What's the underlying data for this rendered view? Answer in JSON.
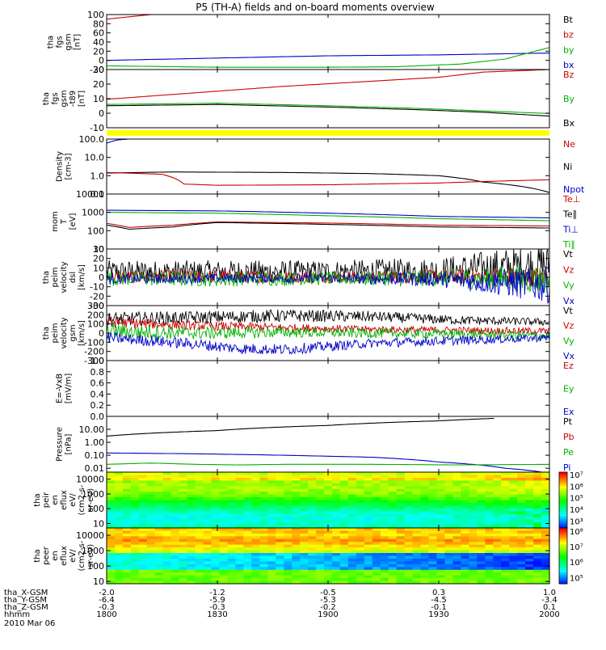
{
  "chart_data": {
    "type": "line",
    "title": "P5 (TH-A) fields and on-board moments overview",
    "date_label": "2010 Mar 06",
    "x_time_ticks": [
      "1800",
      "1830",
      "1900",
      "1930",
      "2000"
    ],
    "x_time_range": [
      18.0,
      20.0
    ],
    "orbit_rows": [
      {
        "label": "tha_X-GSM",
        "values": [
          "-2.0",
          "-1.2",
          "-0.5",
          "0.3",
          "1.0"
        ]
      },
      {
        "label": "tha_Y-GSM",
        "values": [
          "-6.4",
          "-5.9",
          "-5.3",
          "-4.5",
          "-3.4"
        ]
      },
      {
        "label": "tha_Z-GSM",
        "values": [
          "-0.3",
          "-0.3",
          "-0.2",
          "-0.1",
          "0.1"
        ]
      },
      {
        "label": "hhmm",
        "values": []
      }
    ],
    "panels": [
      {
        "ylabel": [
          "tha",
          "fgs",
          "gsm",
          "[nT]"
        ],
        "scale": "linear",
        "ylim": [
          -20,
          100
        ],
        "ticks": [
          "100",
          "80",
          "60",
          "40",
          "20",
          "0",
          "-20"
        ],
        "legend": [
          {
            "text": "Bt",
            "color": "#000000"
          },
          {
            "text": "bz",
            "color": "#cc0000"
          },
          {
            "text": "by",
            "color": "#00b000"
          },
          {
            "text": "bx",
            "color": "#0000cc"
          }
        ],
        "series": [
          {
            "color": "#cc0000",
            "x": [
              18.0,
              18.1,
              18.2,
              18.3
            ],
            "y": [
              90,
              95,
              100,
              104
            ]
          },
          {
            "color": "#0000cc",
            "x": [
              18.0,
              18.5,
              19.0,
              19.5,
              20.0
            ],
            "y": [
              0,
              5,
              10,
              12,
              16
            ]
          },
          {
            "color": "#00b000",
            "x": [
              18.0,
              18.5,
              19.0,
              19.3,
              19.6,
              19.8,
              20.0
            ],
            "y": [
              -12,
              -15,
              -15,
              -14,
              -8,
              3,
              28
            ]
          }
        ]
      },
      {
        "ylabel": [
          "tha",
          "fgs",
          "gsm",
          "-t89",
          "[nT]"
        ],
        "scale": "linear",
        "ylim": [
          -15,
          30
        ],
        "ticks": [
          "30",
          "20",
          "10",
          "0",
          "-10"
        ],
        "legend": [
          {
            "text": "Bz",
            "color": "#cc0000"
          },
          {
            "text": "By",
            "color": "#00b000"
          },
          {
            "text": "Bx",
            "color": "#000000"
          }
        ],
        "series": [
          {
            "color": "#cc0000",
            "x": [
              18.0,
              18.4,
              18.8,
              19.2,
              19.5,
              19.7,
              20.0
            ],
            "y": [
              7,
              12,
              17,
              21,
              24,
              28,
              30
            ]
          },
          {
            "color": "#000000",
            "x": [
              18.0,
              18.5,
              19.0,
              19.4,
              19.7,
              20.0
            ],
            "y": [
              2,
              3,
              1,
              -1,
              -3,
              -6
            ]
          },
          {
            "color": "#00b000",
            "x": [
              18.0,
              18.5,
              19.0,
              19.4,
              19.7,
              20.0
            ],
            "y": [
              3,
              4,
              2,
              0,
              -2,
              -4
            ]
          }
        ]
      },
      {
        "ylabel": [
          "Density",
          "[cm-3]"
        ],
        "scale": "log",
        "ylim": [
          0.1,
          100
        ],
        "ticks": [
          "100.0",
          "10.0",
          "1.0",
          "0.1"
        ],
        "legend": [
          {
            "text": "Ne",
            "color": "#cc0000"
          },
          {
            "text": "Ni",
            "color": "#000000"
          },
          {
            "text": "Npot",
            "color": "#0000cc"
          }
        ],
        "series": [
          {
            "color": "#000000",
            "x": [
              18.0,
              18.3,
              18.8,
              19.2,
              19.5,
              19.7,
              20.0
            ],
            "y": [
              1.4,
              1.6,
              1.5,
              1.3,
              1.0,
              0.45,
              0.12
            ]
          },
          {
            "color": "#cc0000",
            "x": [
              18.0,
              18.25,
              18.35,
              18.5,
              19.0,
              19.5,
              20.0
            ],
            "y": [
              1.5,
              1.2,
              0.35,
              0.3,
              0.32,
              0.4,
              0.6
            ]
          },
          {
            "color": "#0000cc",
            "x": [
              18.0,
              18.05,
              18.1,
              18.15
            ],
            "y": [
              60,
              90,
              100,
              110
            ]
          }
        ]
      },
      {
        "ylabel": [
          "mom",
          "T",
          "[eV]"
        ],
        "scale": "log",
        "ylim": [
          10,
          10000
        ],
        "ticks": [
          "10000",
          "1000",
          "100",
          "10"
        ],
        "legend": [
          {
            "text": "Te⊥",
            "color": "#cc0000"
          },
          {
            "text": "Te∥",
            "color": "#000000"
          },
          {
            "text": "Ti⊥",
            "color": "#0000cc"
          },
          {
            "text": "Ti∥",
            "color": "#00b000"
          }
        ],
        "series": [
          {
            "color": "#0000cc",
            "x": [
              18.0,
              18.5,
              19.0,
              19.5,
              20.0
            ],
            "y": [
              1300,
              1200,
              900,
              600,
              500
            ]
          },
          {
            "color": "#00b000",
            "x": [
              18.0,
              18.5,
              19.0,
              19.5,
              20.0
            ],
            "y": [
              1000,
              900,
              650,
              450,
              350
            ]
          },
          {
            "color": "#cc0000",
            "x": [
              18.0,
              18.1,
              18.3,
              18.5,
              19.0,
              19.5,
              20.0
            ],
            "y": [
              250,
              150,
              200,
              300,
              260,
              200,
              180
            ]
          },
          {
            "color": "#000000",
            "x": [
              18.0,
              18.1,
              18.3,
              18.5,
              19.0,
              19.5,
              20.0
            ],
            "y": [
              200,
              120,
              160,
              280,
              220,
              160,
              140
            ]
          }
        ]
      },
      {
        "ylabel": [
          "tha",
          "peim",
          "velocity",
          "dsl",
          "[km/s]"
        ],
        "scale": "linear",
        "ylim": [
          -30,
          30
        ],
        "ticks": [
          "30",
          "20",
          "10",
          "0",
          "-10",
          "-20",
          "-30"
        ],
        "legend": [
          {
            "text": "Vt",
            "color": "#000000"
          },
          {
            "text": "Vz",
            "color": "#cc0000"
          },
          {
            "text": "Vy",
            "color": "#00b000"
          },
          {
            "text": "Vx",
            "color": "#0000cc"
          }
        ],
        "series": [
          {
            "color": "#000000",
            "x": [
              18.0,
              18.5,
              19.0,
              19.5,
              20.0
            ],
            "y": [
              6,
              6,
              6,
              7,
              14
            ],
            "noise": [
              12,
              12,
              12,
              14,
              24
            ]
          },
          {
            "color": "#cc0000",
            "x": [
              18.0,
              18.5,
              19.0,
              19.5,
              20.0
            ],
            "y": [
              0,
              1,
              0,
              1,
              0
            ],
            "noise": [
              7,
              7,
              6,
              7,
              12
            ]
          },
          {
            "color": "#00b000",
            "x": [
              18.0,
              18.5,
              19.0,
              19.5,
              20.0
            ],
            "y": [
              -1,
              -2,
              -1,
              -1,
              -2
            ],
            "noise": [
              8,
              8,
              7,
              9,
              16
            ]
          },
          {
            "color": "#0000cc",
            "x": [
              18.0,
              18.5,
              19.0,
              19.5,
              20.0
            ],
            "y": [
              -2,
              -1,
              -1,
              -2,
              -8
            ],
            "noise": [
              5,
              5,
              5,
              8,
              20
            ]
          }
        ]
      },
      {
        "ylabel": [
          "tha",
          "peim",
          "velocity",
          "gsm",
          "[km/s]"
        ],
        "scale": "linear",
        "ylim": [
          -300,
          300
        ],
        "ticks": [
          "300",
          "200",
          "100",
          "0",
          "-100",
          "-200",
          "-300"
        ],
        "legend": [
          {
            "text": "Vt",
            "color": "#000000"
          },
          {
            "text": "Vz",
            "color": "#cc0000"
          },
          {
            "text": "Vy",
            "color": "#00b000"
          },
          {
            "text": "Vx",
            "color": "#0000cc"
          }
        ],
        "series": [
          {
            "color": "#000000",
            "x": [
              18.0,
              18.4,
              18.8,
              19.2,
              19.6,
              20.0
            ],
            "y": [
              150,
              170,
              190,
              180,
              140,
              120
            ],
            "noise": [
              80,
              70,
              70,
              60,
              50,
              40
            ]
          },
          {
            "color": "#cc0000",
            "x": [
              18.0,
              18.4,
              18.8,
              19.2,
              19.6,
              20.0
            ],
            "y": [
              120,
              80,
              60,
              40,
              30,
              20
            ],
            "noise": [
              60,
              50,
              45,
              40,
              40,
              40
            ]
          },
          {
            "color": "#00b000",
            "x": [
              18.0,
              18.4,
              18.8,
              19.2,
              19.6,
              20.0
            ],
            "y": [
              20,
              0,
              10,
              0,
              -10,
              -30
            ],
            "noise": [
              90,
              70,
              60,
              55,
              50,
              50
            ]
          },
          {
            "color": "#0000cc",
            "x": [
              18.0,
              18.4,
              18.6,
              18.8,
              19.2,
              19.6,
              20.0
            ],
            "y": [
              -50,
              -120,
              -170,
              -180,
              -110,
              -80,
              -50
            ],
            "noise": [
              60,
              60,
              60,
              60,
              50,
              50,
              40
            ]
          }
        ]
      },
      {
        "ylabel": [
          "E=-VxB",
          "[mV/m]"
        ],
        "scale": "linear",
        "ylim": [
          0,
          1
        ],
        "ticks": [
          "1.0",
          "0.8",
          "0.6",
          "0.4",
          "0.2",
          "0.0"
        ],
        "legend": [
          {
            "text": "Ez",
            "color": "#cc0000"
          },
          {
            "text": "Ey",
            "color": "#00b000"
          },
          {
            "text": "Ex",
            "color": "#0000cc"
          }
        ],
        "series": []
      },
      {
        "ylabel": [
          "Pressure",
          "[nPa]"
        ],
        "scale": "log",
        "ylim": [
          0.005,
          100
        ],
        "ticks": [
          "10.00",
          "1.00",
          "0.10",
          "0.01"
        ],
        "legend": [
          {
            "text": "Pt",
            "color": "#000000"
          },
          {
            "text": "Pb",
            "color": "#cc0000"
          },
          {
            "text": "Pe",
            "color": "#00b000"
          },
          {
            "text": "Pi",
            "color": "#0000cc"
          }
        ],
        "series": [
          {
            "color": "#000000",
            "x": [
              18.0,
              18.5,
              19.0,
              19.5,
              19.75
            ],
            "y": [
              3.0,
              8.0,
              20,
              45,
              70
            ]
          },
          {
            "color": "#0000cc",
            "x": [
              18.0,
              18.4,
              18.8,
              19.2,
              19.5,
              19.8,
              20.0
            ],
            "y": [
              0.15,
              0.13,
              0.1,
              0.07,
              0.03,
              0.01,
              0.004
            ]
          },
          {
            "color": "#00b000",
            "x": [
              18.0,
              18.2,
              18.4,
              18.6,
              18.8,
              19.2,
              19.6,
              20.0
            ],
            "y": [
              0.02,
              0.025,
              0.02,
              0.018,
              0.02,
              0.02,
              0.018,
              0.02
            ]
          }
        ]
      },
      {
        "ylabel": [
          "tha",
          "peir",
          "en",
          "eflux",
          "eV/",
          "(cm2-s-",
          "sr-eV)"
        ],
        "scale": "log",
        "type": "heatmap",
        "ylim": [
          5,
          30000
        ],
        "ticks": [
          "10000",
          "1000",
          "100",
          "10"
        ],
        "colorbar": {
          "ticks": [
            "10⁷",
            "10⁶",
            "10⁵",
            "10⁴",
            "10³"
          ],
          "range_exp": [
            2.4,
            7.2
          ]
        }
      },
      {
        "ylabel": [
          "tha",
          "peer",
          "en",
          "eflux",
          "eV/",
          "(cm2-s-",
          "sr-eV)"
        ],
        "scale": "log",
        "type": "heatmap",
        "ylim": [
          7,
          30000
        ],
        "ticks": [
          "10000",
          "1000",
          "100",
          "10"
        ],
        "colorbar": {
          "ticks": [
            "10⁸",
            "10⁷",
            "10⁶",
            "10⁵"
          ],
          "range_exp": [
            4.6,
            8.2
          ]
        }
      }
    ]
  }
}
